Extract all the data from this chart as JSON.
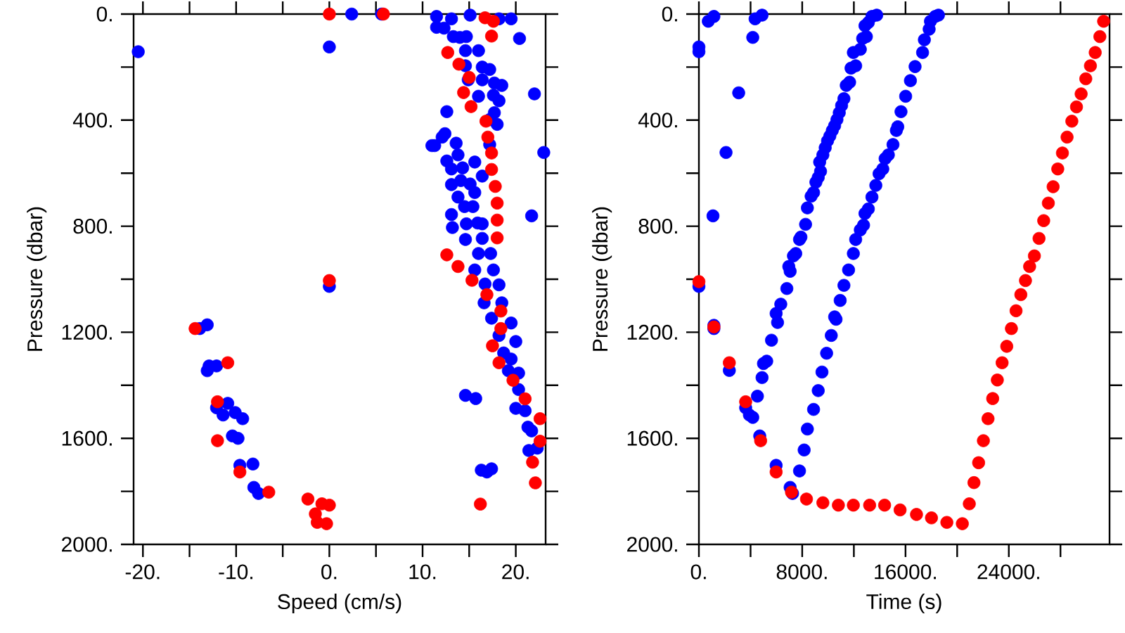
{
  "chart_data": [
    {
      "type": "scatter",
      "xlabel": "Speed (cm/s)",
      "ylabel": "Pressure (dbar)",
      "marker": "circle",
      "xlim": [
        -21,
        23.2
      ],
      "ylim": [
        2000,
        0
      ],
      "xticks": [
        {
          "value": -20,
          "label": "-20."
        },
        {
          "value": -15,
          "label": null
        },
        {
          "value": -10,
          "label": "-10."
        },
        {
          "value": -5,
          "label": null
        },
        {
          "value": 0,
          "label": "0."
        },
        {
          "value": 5,
          "label": null
        },
        {
          "value": 10,
          "label": "10."
        },
        {
          "value": 15,
          "label": null
        },
        {
          "value": 20,
          "label": "20."
        }
      ],
      "yticks": [
        {
          "value": 0,
          "label": "0."
        },
        {
          "value": 200,
          "label": null
        },
        {
          "value": 400,
          "label": "400."
        },
        {
          "value": 600,
          "label": null
        },
        {
          "value": 800,
          "label": "800."
        },
        {
          "value": 1000,
          "label": null
        },
        {
          "value": 1200,
          "label": "1200."
        },
        {
          "value": 1400,
          "label": null
        },
        {
          "value": 1600,
          "label": "1600."
        },
        {
          "value": 1800,
          "label": null
        },
        {
          "value": 2000,
          "label": "2000."
        }
      ],
      "series": [
        {
          "color": "#0000ff",
          "x": [
            -20.5,
            0,
            2.4,
            5.6,
            0,
            20.4,
            22.0,
            23.0,
            21.7,
            11.0,
            -13.9,
            -13.1,
            -12.9,
            -12.1,
            -13.1,
            -12.1,
            -10.9,
            -11.4,
            -10.1,
            -9.3,
            -10.4,
            -9.8,
            -9.6,
            -8.2,
            -8.1,
            -7.6,
            14.6,
            15.7,
            16.3,
            16.9,
            17.4,
            11.5,
            13.1,
            15.1,
            18.2,
            19.5,
            11.5,
            12.3,
            13.3,
            14.0,
            14.7,
            14.6,
            16.0,
            14.6,
            16.4,
            17.2,
            14.9,
            16.4,
            17.7,
            18.5,
            16.0,
            17.6,
            18.2,
            12.6,
            17.7,
            17.2,
            18.0,
            12.4,
            12.1,
            11.3,
            13.6,
            17.2,
            13.8,
            12.6,
            15.6,
            13.1,
            14.3,
            16.4,
            14.1,
            15.1,
            13.1,
            15.6,
            13.8,
            14.5,
            15.4,
            13.1,
            14.7,
            15.9,
            16.4,
            13.2,
            14.6,
            16.4,
            16.0,
            17.3,
            17.6,
            15.6,
            16.7,
            18.2,
            16.6,
            18.5,
            17.4,
            19.5,
            18.2,
            20.0,
            18.7,
            19.5,
            19.2,
            20.3,
            20.3,
            20.0,
            21.0,
            21.3,
            21.7,
            21.4,
            22.3
          ],
          "values": [
            142,
            124,
            0,
            0,
            1027,
            92,
            301,
            522,
            761,
            496,
            1186,
            1172,
            1327,
            1327,
            1345,
            1485,
            1468,
            1512,
            1503,
            1526,
            1591,
            1600,
            1702,
            1697,
            1785,
            1808,
            1438,
            1450,
            1720,
            1727,
            1715,
            9,
            18,
            4,
            18,
            18,
            50,
            53,
            85,
            88,
            85,
            138,
            138,
            195,
            200,
            209,
            248,
            248,
            260,
            269,
            310,
            306,
            327,
            368,
            372,
            398,
            416,
            451,
            464,
            496,
            487,
            492,
            531,
            554,
            558,
            584,
            580,
            611,
            628,
            641,
            643,
            673,
            690,
            726,
            726,
            756,
            791,
            788,
            791,
            805,
            850,
            846,
            903,
            903,
            965,
            965,
            1018,
            1021,
            1089,
            1089,
            1147,
            1165,
            1212,
            1235,
            1278,
            1301,
            1345,
            1354,
            1416,
            1487,
            1496,
            1558,
            1572,
            1646,
            1637
          ]
        },
        {
          "color": "#ff0000",
          "x": [
            0,
            5.8,
            0,
            16.7,
            17.6,
            17.4,
            12.7,
            13.9,
            15.0,
            14.4,
            15.2,
            16.8,
            17.0,
            17.4,
            17.4,
            17.8,
            18.0,
            18.0,
            18.0,
            12.6,
            13.8,
            15.3,
            16.9,
            18.4,
            18.4,
            17.5,
            18.2,
            19.7,
            21.0,
            22.6,
            22.6,
            21.8,
            22.1,
            16.2,
            -14.4,
            -10.9,
            -12.0,
            -12.0,
            -9.6,
            -6.5,
            -2.3,
            -0.8,
            0,
            -1.5,
            -1.3,
            -0.3
          ],
          "values": [
            0,
            0,
            1005,
            14,
            27,
            83,
            145,
            189,
            239,
            296,
            349,
            404,
            464,
            524,
            586,
            650,
            713,
            777,
            844,
            908,
            952,
            1004,
            1058,
            1120,
            1186,
            1251,
            1315,
            1381,
            1451,
            1526,
            1611,
            1690,
            1768,
            1848,
            1186,
            1315,
            1462,
            1609,
            1727,
            1803,
            1829,
            1847,
            1852,
            1885,
            1917,
            1922
          ]
        }
      ]
    },
    {
      "type": "scatter",
      "xlabel": "Time (s)",
      "ylabel": "Pressure (dbar)",
      "marker": "circle",
      "xlim": [
        0,
        31800
      ],
      "ylim": [
        2000,
        0
      ],
      "xticks": [
        {
          "value": 0,
          "label": "0."
        },
        {
          "value": 4000,
          "label": null
        },
        {
          "value": 8000,
          "label": "8000."
        },
        {
          "value": 12000,
          "label": null
        },
        {
          "value": 16000,
          "label": "16000."
        },
        {
          "value": 20000,
          "label": null
        },
        {
          "value": 24000,
          "label": "24000."
        },
        {
          "value": 28000,
          "label": null
        }
      ],
      "yticks": [
        {
          "value": 0,
          "label": "0."
        },
        {
          "value": 200,
          "label": null
        },
        {
          "value": 400,
          "label": "400."
        },
        {
          "value": 600,
          "label": null
        },
        {
          "value": 800,
          "label": "800."
        },
        {
          "value": 1000,
          "label": null
        },
        {
          "value": 1200,
          "label": "1200."
        },
        {
          "value": 1400,
          "label": null
        },
        {
          "value": 1600,
          "label": "1600."
        },
        {
          "value": 1800,
          "label": null
        },
        {
          "value": 2000,
          "label": "2000."
        }
      ],
      "series": [
        {
          "color": "#0000ff",
          "x": [
            0,
            0,
            725,
            1160,
            4170,
            3080,
            4350,
            4890,
            2100,
            1090,
            0,
            1160,
            1160,
            2355,
            3620,
            3910,
            4170,
            4710,
            5980,
            7065,
            7250,
            4530,
            4890,
            5000,
            5250,
            5620,
            6090,
            5980,
            6340,
            6810,
            7065,
            6960,
            7320,
            7500,
            7790,
            7900,
            8260,
            8400,
            8690,
            8880,
            9060,
            9240,
            9420,
            9350,
            9600,
            9780,
            9960,
            10140,
            10330,
            10510,
            10690,
            10870,
            11050,
            11230,
            11410,
            11670,
            11780,
            12140,
            11960,
            12500,
            12680,
            12970,
            12860,
            13120,
            13400,
            13770,
            7790,
            8150,
            8400,
            8880,
            9240,
            9530,
            9890,
            10250,
            10620,
            10510,
            10940,
            11230,
            11590,
            11960,
            12140,
            12500,
            12750,
            12860,
            13120,
            13400,
            13700,
            13950,
            14240,
            14420,
            14670,
            15030,
            15290,
            15400,
            15650,
            16010,
            16380,
            16740,
            17320,
            17460,
            17830,
            17930,
            18300,
            18550
          ],
          "values": [
            124,
            142,
            27,
            9,
            88,
            297,
            18,
            4,
            522,
            761,
            1027,
            1174,
            1186,
            1344,
            1485,
            1512,
            1521,
            1591,
            1702,
            1785,
            1808,
            1441,
            1371,
            1318,
            1309,
            1230,
            1163,
            1129,
            1094,
            1035,
            970,
            952,
            912,
            903,
            850,
            841,
            793,
            731,
            687,
            673,
            634,
            616,
            593,
            558,
            531,
            504,
            478,
            460,
            439,
            421,
            398,
            372,
            345,
            319,
            269,
            257,
            204,
            195,
            145,
            133,
            92,
            85,
            44,
            32,
            9,
            4,
            1723,
            1644,
            1565,
            1491,
            1420,
            1350,
            1279,
            1212,
            1151,
            1142,
            1080,
            1023,
            965,
            903,
            850,
            814,
            796,
            752,
            735,
            690,
            646,
            602,
            584,
            545,
            531,
            492,
            439,
            425,
            368,
            310,
            251,
            198,
            145,
            97,
            57,
            27,
            9,
            4
          ]
        },
        {
          "color": "#ff0000",
          "x": [
            0,
            1160,
            2355,
            3620,
            4780,
            5980,
            7170,
            8330,
            9600,
            10800,
            11960,
            13220,
            14380,
            15580,
            16850,
            18010,
            19200,
            20400,
            20940,
            21300,
            21660,
            22030,
            22390,
            22750,
            23110,
            23480,
            23840,
            24200,
            24560,
            24930,
            25290,
            25610,
            25980,
            26340,
            26700,
            27060,
            27430,
            27790,
            28150,
            28510,
            28880,
            29240,
            29600,
            29960,
            30320,
            30690,
            31050,
            31340
          ],
          "values": [
            1009,
            1180,
            1315,
            1462,
            1609,
            1727,
            1803,
            1829,
            1843,
            1852,
            1852,
            1852,
            1852,
            1870,
            1887,
            1900,
            1917,
            1922,
            1847,
            1767,
            1692,
            1609,
            1526,
            1450,
            1380,
            1315,
            1253,
            1186,
            1119,
            1058,
            1005,
            952,
            912,
            846,
            779,
            713,
            651,
            584,
            524,
            464,
            404,
            350,
            301,
            244,
            195,
            145,
            85,
            27
          ]
        }
      ]
    }
  ]
}
